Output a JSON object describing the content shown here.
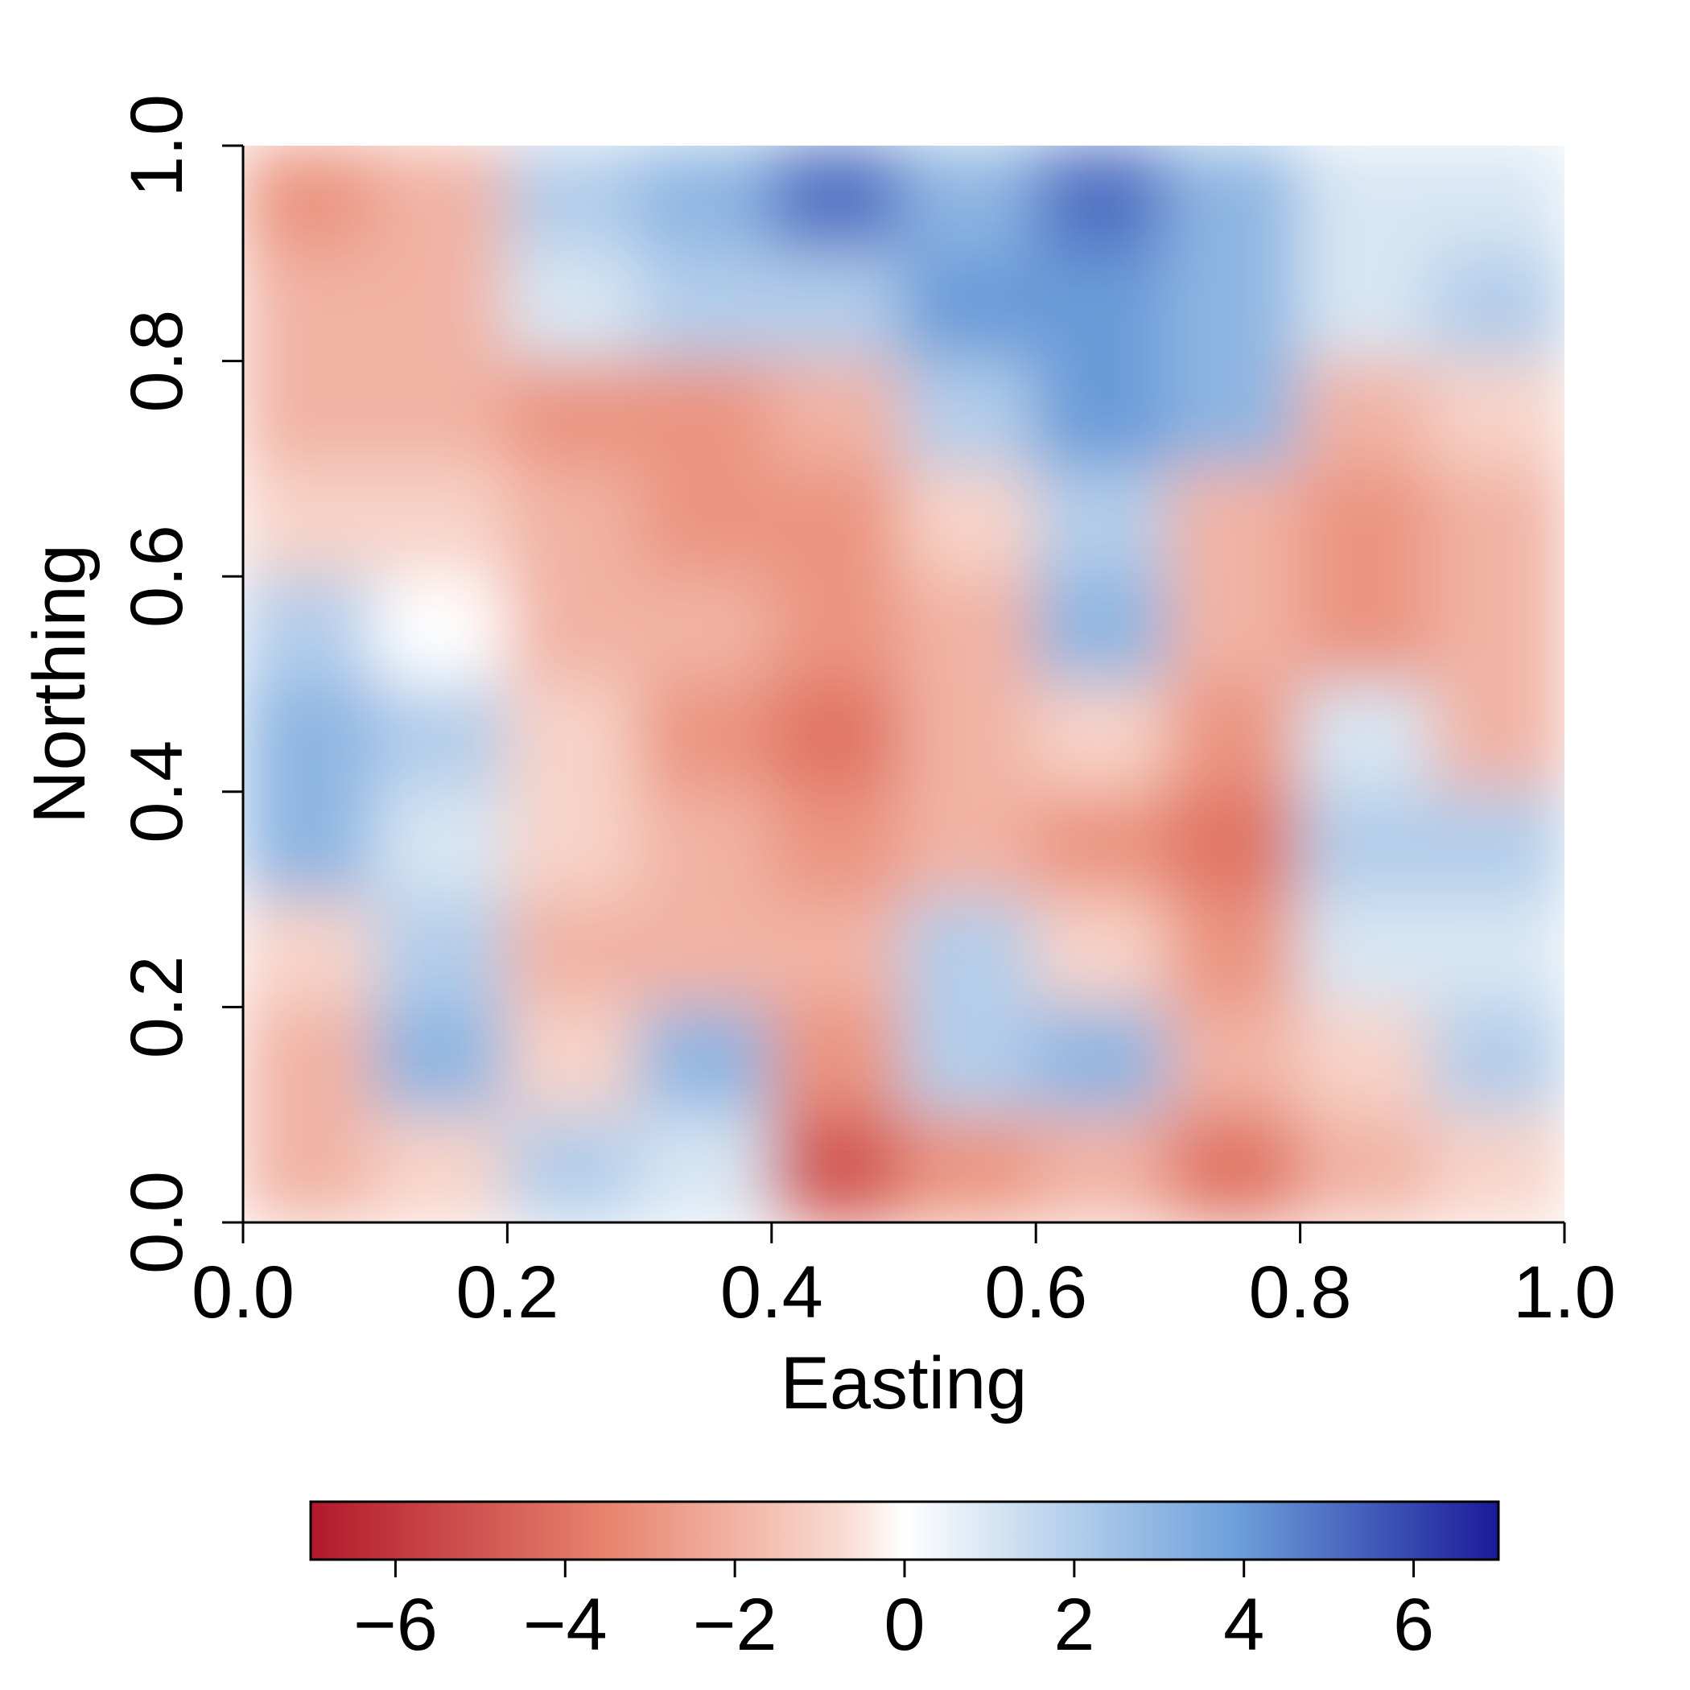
{
  "chart_data": {
    "type": "heatmap",
    "title": "",
    "xlabel": "Easting",
    "ylabel": "Northing",
    "xlim": [
      0.0,
      1.0
    ],
    "ylim": [
      0.0,
      1.0
    ],
    "x_ticks": [
      "0.0",
      "0.2",
      "0.4",
      "0.6",
      "0.8",
      "1.0"
    ],
    "y_ticks": [
      "0.0",
      "0.2",
      "0.4",
      "0.6",
      "0.8",
      "1.0"
    ],
    "colorbar": {
      "range": [
        -7,
        7
      ],
      "ticks": [
        "−6",
        "−4",
        "−2",
        "0",
        "2",
        "4",
        "6"
      ],
      "tick_values": [
        -6,
        -4,
        -2,
        0,
        2,
        4,
        6
      ],
      "colors": {
        "low": "#b2182b",
        "mid_low": "#f4a582",
        "mid": "#ffffff",
        "mid_high": "#92c5de",
        "high": "#1a1a99"
      }
    },
    "grid": false,
    "legend": "colorbar-bottom",
    "field": {
      "x": [
        0.05,
        0.15,
        0.25,
        0.35,
        0.45,
        0.55,
        0.65,
        0.75,
        0.85,
        0.95
      ],
      "y": [
        0.95,
        0.85,
        0.75,
        0.65,
        0.55,
        0.45,
        0.35,
        0.25,
        0.15,
        0.05
      ],
      "values": [
        [
          -3,
          -2,
          2,
          3,
          5,
          3,
          5,
          3,
          1,
          1
        ],
        [
          -2,
          -2,
          1,
          2,
          2,
          4,
          4,
          3,
          1,
          2
        ],
        [
          -2,
          -2,
          -3,
          -3,
          -2,
          2,
          4,
          3,
          -2,
          -1
        ],
        [
          -1,
          -1,
          -2,
          -3,
          -3,
          -1,
          2,
          -2,
          -3,
          -2
        ],
        [
          2,
          0,
          -2,
          -2,
          -3,
          -2,
          3,
          -2,
          -3,
          -2
        ],
        [
          3,
          2,
          -1,
          -3,
          -4,
          -2,
          -1,
          -3,
          1,
          -2
        ],
        [
          3,
          1,
          -1,
          -2,
          -3,
          -2,
          -3,
          -4,
          2,
          2
        ],
        [
          -1,
          2,
          -2,
          -2,
          -2,
          2,
          -1,
          -3,
          1,
          1
        ],
        [
          -2,
          3,
          -1,
          3,
          -3,
          2,
          3,
          -2,
          -1,
          2
        ],
        [
          -2,
          -1,
          2,
          1,
          -5,
          -3,
          -2,
          -4,
          -2,
          -1
        ]
      ]
    }
  }
}
